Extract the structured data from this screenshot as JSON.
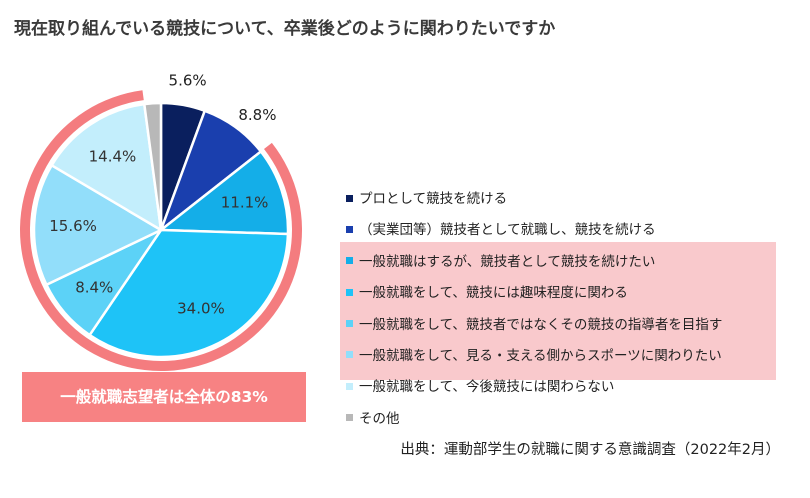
{
  "title": "現在取り組んでいる競技について、卒業後どのように関わりたいですか",
  "summary": "一般就職志望者は全体の83%",
  "source": "出典：運動部学生の就職に関する意識調査（2022年2月）",
  "colors": {
    "highlight_ring": "#f47c7f",
    "highlight_box": "#f9c9cc",
    "summary_box": "#f78283"
  },
  "chart_data": {
    "type": "pie",
    "unit": "%",
    "categories": [
      "プロとして競技を続ける",
      "（実業団等）競技者として就職し、競技を続ける",
      "一般就職はするが、競技者として競技を続けたい",
      "一般就職をして、競技には趣味程度に関わる",
      "一般就職をして、競技者ではなくその競技の指導者を目指す",
      "一般就職をして、見る・支える側からスポーツに関わりたい",
      "一般就職をして、今後競技には関わらない",
      "その他"
    ],
    "values": [
      5.6,
      8.8,
      11.1,
      34.0,
      8.4,
      15.6,
      14.4,
      2.1
    ],
    "labels": [
      "5.6%",
      "8.8%",
      "11.1%",
      "34.0%",
      "8.4%",
      "15.6%",
      "14.4%",
      ""
    ],
    "colors": [
      "#0a1f5e",
      "#1a3fae",
      "#14aee8",
      "#1ec3f7",
      "#5cd2f7",
      "#92defa",
      "#c3eefc",
      "#b8b8b8"
    ],
    "highlighted_categories": [
      2,
      3,
      4,
      5,
      6
    ],
    "legend_position": "right"
  }
}
